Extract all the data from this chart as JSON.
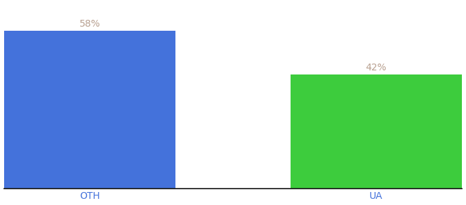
{
  "categories": [
    "OTH",
    "UA"
  ],
  "values": [
    58,
    42
  ],
  "bar_colors": [
    "#4472db",
    "#3dcc3d"
  ],
  "label_format": "{}%",
  "background_color": "#ffffff",
  "label_color": "#b8a090",
  "tick_color": "#4472db",
  "label_fontsize": 10,
  "tick_fontsize": 10,
  "bar_width": 0.6,
  "ylim": [
    0,
    68
  ],
  "xlim": [
    -0.3,
    1.3
  ]
}
